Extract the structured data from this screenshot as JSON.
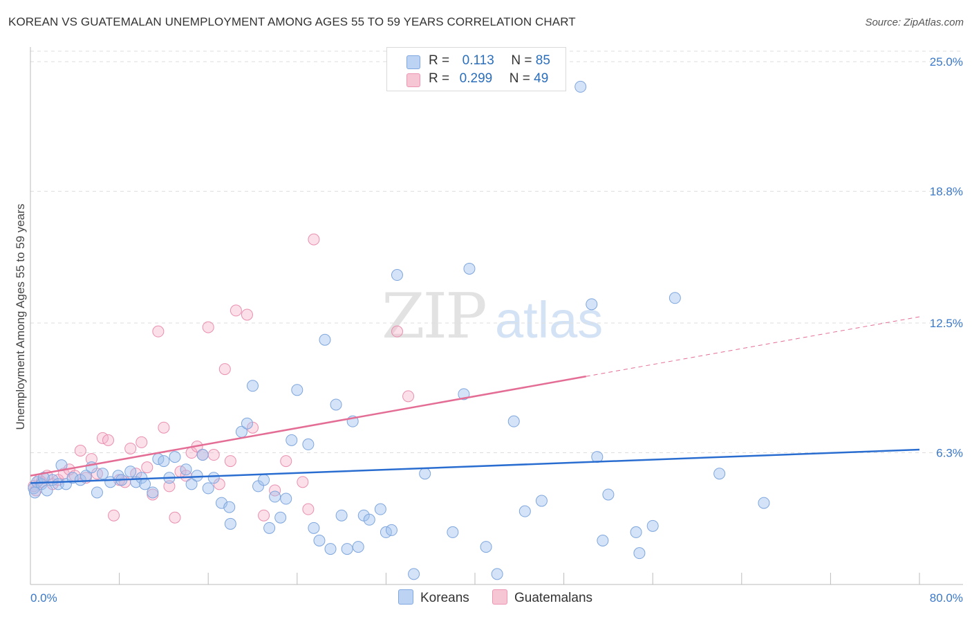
{
  "title": "KOREAN VS GUATEMALAN UNEMPLOYMENT AMONG AGES 55 TO 59 YEARS CORRELATION CHART",
  "source": "Source: ZipAtlas.com",
  "watermark": {
    "zip": "ZIP",
    "atlas": "atlas"
  },
  "legend": {
    "rows": [
      {
        "r_label": "R =",
        "r_value": "0.113",
        "n_label": "N =",
        "n_value": "85"
      },
      {
        "r_label": "R =",
        "r_value": "0.299",
        "n_label": "N =",
        "n_value": "49"
      }
    ],
    "bottom": [
      "Koreans",
      "Guatemalans"
    ]
  },
  "chart_data": {
    "type": "scatter",
    "title": "KOREAN VS GUATEMALAN UNEMPLOYMENT AMONG AGES 55 TO 59 YEARS CORRELATION CHART",
    "xlabel": "",
    "ylabel": "Unemployment Among Ages 55 to 59 years",
    "xlim": [
      0,
      80
    ],
    "ylim": [
      0,
      25.5
    ],
    "x_tick_labels": [
      "0.0%",
      "80.0%"
    ],
    "y_ticks": [
      6.3,
      12.5,
      18.8,
      25.0
    ],
    "y_tick_labels": [
      "6.3%",
      "12.5%",
      "18.8%",
      "25.0%"
    ],
    "grid": true,
    "colors": {
      "Koreans": "#8fb5e8",
      "Guatemalans": "#f0a3bd",
      "korean_line": "#2a6dd0",
      "guatemalan_line": "#e36d95",
      "tick_label": "#3a78c9"
    },
    "series": [
      {
        "name": "Koreans",
        "trend": {
          "x": [
            0,
            80
          ],
          "y": [
            4.85,
            6.45
          ]
        },
        "points": [
          [
            0.3,
            4.6
          ],
          [
            0.6,
            4.9
          ],
          [
            1.0,
            4.8
          ],
          [
            1.5,
            4.5
          ],
          [
            2.0,
            5.0
          ],
          [
            2.5,
            4.8
          ],
          [
            2.8,
            5.7
          ],
          [
            3.2,
            4.8
          ],
          [
            3.8,
            5.1
          ],
          [
            4.5,
            5.0
          ],
          [
            5.0,
            5.2
          ],
          [
            5.5,
            5.6
          ],
          [
            6.0,
            4.4
          ],
          [
            6.5,
            5.3
          ],
          [
            7.2,
            4.9
          ],
          [
            7.9,
            5.2
          ],
          [
            8.2,
            5.0
          ],
          [
            9.0,
            5.4
          ],
          [
            9.5,
            4.9
          ],
          [
            10.0,
            5.1
          ],
          [
            10.3,
            4.8
          ],
          [
            11.0,
            4.4
          ],
          [
            11.5,
            6.0
          ],
          [
            12.0,
            5.9
          ],
          [
            12.5,
            5.1
          ],
          [
            13.0,
            6.1
          ],
          [
            14.0,
            5.5
          ],
          [
            14.5,
            4.8
          ],
          [
            15.0,
            5.2
          ],
          [
            15.5,
            6.2
          ],
          [
            16.0,
            4.6
          ],
          [
            16.5,
            5.1
          ],
          [
            17.2,
            3.9
          ],
          [
            17.9,
            3.7
          ],
          [
            18.0,
            2.9
          ],
          [
            19.0,
            7.3
          ],
          [
            19.5,
            7.7
          ],
          [
            20.0,
            9.5
          ],
          [
            20.5,
            4.7
          ],
          [
            21.0,
            5.0
          ],
          [
            21.5,
            2.7
          ],
          [
            22.0,
            4.2
          ],
          [
            22.5,
            3.2
          ],
          [
            23.0,
            4.1
          ],
          [
            23.5,
            6.9
          ],
          [
            24.0,
            9.3
          ],
          [
            25.0,
            6.7
          ],
          [
            25.5,
            2.7
          ],
          [
            26.0,
            2.1
          ],
          [
            26.5,
            11.7
          ],
          [
            27.0,
            1.7
          ],
          [
            27.5,
            8.6
          ],
          [
            28.0,
            3.3
          ],
          [
            28.5,
            1.7
          ],
          [
            29.0,
            7.8
          ],
          [
            29.5,
            1.8
          ],
          [
            30.0,
            3.3
          ],
          [
            30.5,
            3.1
          ],
          [
            31.5,
            3.6
          ],
          [
            32.0,
            2.5
          ],
          [
            32.5,
            2.6
          ],
          [
            33.0,
            14.8
          ],
          [
            34.5,
            0.5
          ],
          [
            35.5,
            5.3
          ],
          [
            38.0,
            2.5
          ],
          [
            39.0,
            9.1
          ],
          [
            39.5,
            15.1
          ],
          [
            41.0,
            1.8
          ],
          [
            42.0,
            0.5
          ],
          [
            43.5,
            7.8
          ],
          [
            44.5,
            3.5
          ],
          [
            46.0,
            4.0
          ],
          [
            49.5,
            23.8
          ],
          [
            50.5,
            13.4
          ],
          [
            51.0,
            6.1
          ],
          [
            51.5,
            2.1
          ],
          [
            52.0,
            4.3
          ],
          [
            54.5,
            2.5
          ],
          [
            54.8,
            1.5
          ],
          [
            56.0,
            2.8
          ],
          [
            58.0,
            13.7
          ],
          [
            62.0,
            5.3
          ],
          [
            66.0,
            3.9
          ],
          [
            0.4,
            4.4
          ],
          [
            1.2,
            5.1
          ]
        ]
      },
      {
        "name": "Guatemalans",
        "trend": {
          "x": [
            0,
            80
          ],
          "y": [
            5.2,
            12.8
          ],
          "solid_until_x": 50
        },
        "points": [
          [
            0.3,
            4.7
          ],
          [
            0.5,
            4.5
          ],
          [
            0.8,
            5.0
          ],
          [
            1.0,
            4.9
          ],
          [
            1.5,
            5.2
          ],
          [
            2.0,
            4.8
          ],
          [
            2.5,
            5.0
          ],
          [
            3.0,
            5.3
          ],
          [
            3.5,
            5.5
          ],
          [
            4.0,
            5.2
          ],
          [
            4.5,
            6.4
          ],
          [
            5.0,
            5.1
          ],
          [
            5.5,
            6.0
          ],
          [
            6.0,
            5.3
          ],
          [
            6.5,
            7.0
          ],
          [
            7.0,
            6.9
          ],
          [
            7.5,
            3.3
          ],
          [
            8.0,
            5.0
          ],
          [
            8.5,
            4.9
          ],
          [
            9.0,
            6.5
          ],
          [
            9.5,
            5.3
          ],
          [
            10.0,
            6.8
          ],
          [
            10.5,
            5.6
          ],
          [
            11.0,
            4.3
          ],
          [
            11.5,
            12.1
          ],
          [
            12.0,
            7.5
          ],
          [
            12.5,
            4.7
          ],
          [
            13.0,
            3.2
          ],
          [
            13.5,
            5.4
          ],
          [
            14.0,
            5.2
          ],
          [
            14.5,
            6.3
          ],
          [
            15.0,
            6.6
          ],
          [
            15.5,
            6.2
          ],
          [
            16.0,
            12.3
          ],
          [
            16.5,
            6.2
          ],
          [
            17.0,
            4.8
          ],
          [
            17.5,
            10.3
          ],
          [
            18.0,
            5.9
          ],
          [
            18.5,
            13.1
          ],
          [
            19.5,
            12.9
          ],
          [
            20.0,
            7.5
          ],
          [
            21.0,
            3.3
          ],
          [
            22.0,
            4.5
          ],
          [
            23.0,
            5.9
          ],
          [
            24.5,
            4.9
          ],
          [
            25.0,
            3.6
          ],
          [
            25.5,
            16.5
          ],
          [
            33.0,
            12.1
          ],
          [
            34.0,
            9.0
          ]
        ]
      }
    ]
  }
}
